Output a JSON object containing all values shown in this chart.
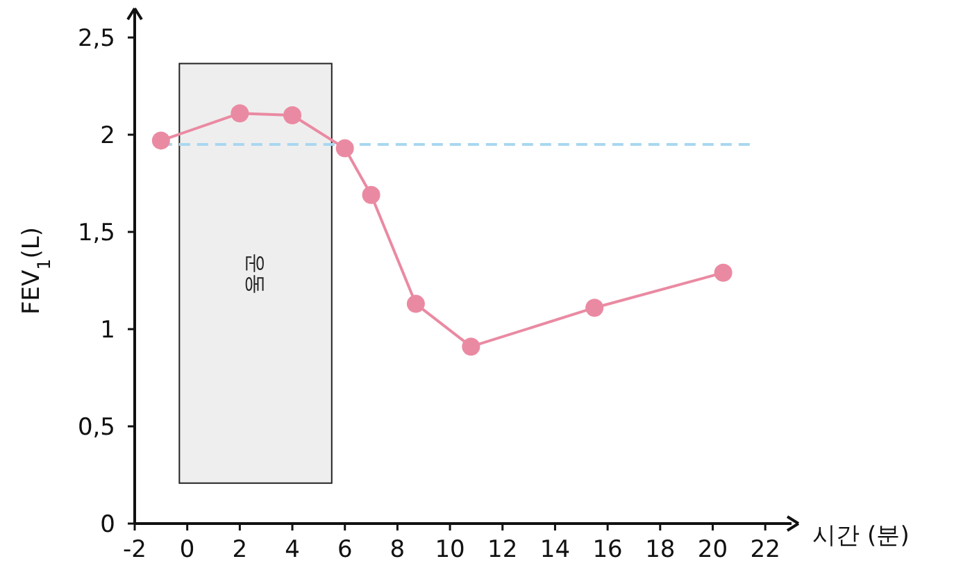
{
  "chart_data": {
    "type": "line",
    "xlabel": "시간 (분)",
    "ylabel": "FEV$_{1}$(L)",
    "x": [
      -1,
      2,
      4,
      6,
      7,
      8.7,
      10.8,
      15.5,
      20.4
    ],
    "series": [
      {
        "color": "#ea8aa2",
        "values": [
          1.97,
          2.11,
          2.1,
          1.93,
          1.69,
          1.13,
          0.91,
          1.11,
          1.29
        ]
      }
    ],
    "xlim": [
      -2,
      23
    ],
    "xticks": [
      -2,
      0,
      2,
      4,
      6,
      8,
      10,
      12,
      14,
      16,
      18,
      20,
      22
    ],
    "ylim": [
      0,
      2.6
    ],
    "yticks": [
      0,
      {
        "value": 0.5,
        "label": "0,5"
      },
      1,
      {
        "value": 1.5,
        "label": "1,5"
      },
      2,
      {
        "value": 2.5,
        "label": "2,5"
      }
    ],
    "ref_lines": [
      {
        "axis": "y",
        "value": 1.95,
        "color": "#a9d7f0",
        "line_style": "dashed"
      }
    ],
    "bands": [
      {
        "axis": "x",
        "from": -0.3,
        "to": 5.5,
        "label": "운동",
        "color": "#eeeeee"
      }
    ],
    "marker": "circle"
  }
}
